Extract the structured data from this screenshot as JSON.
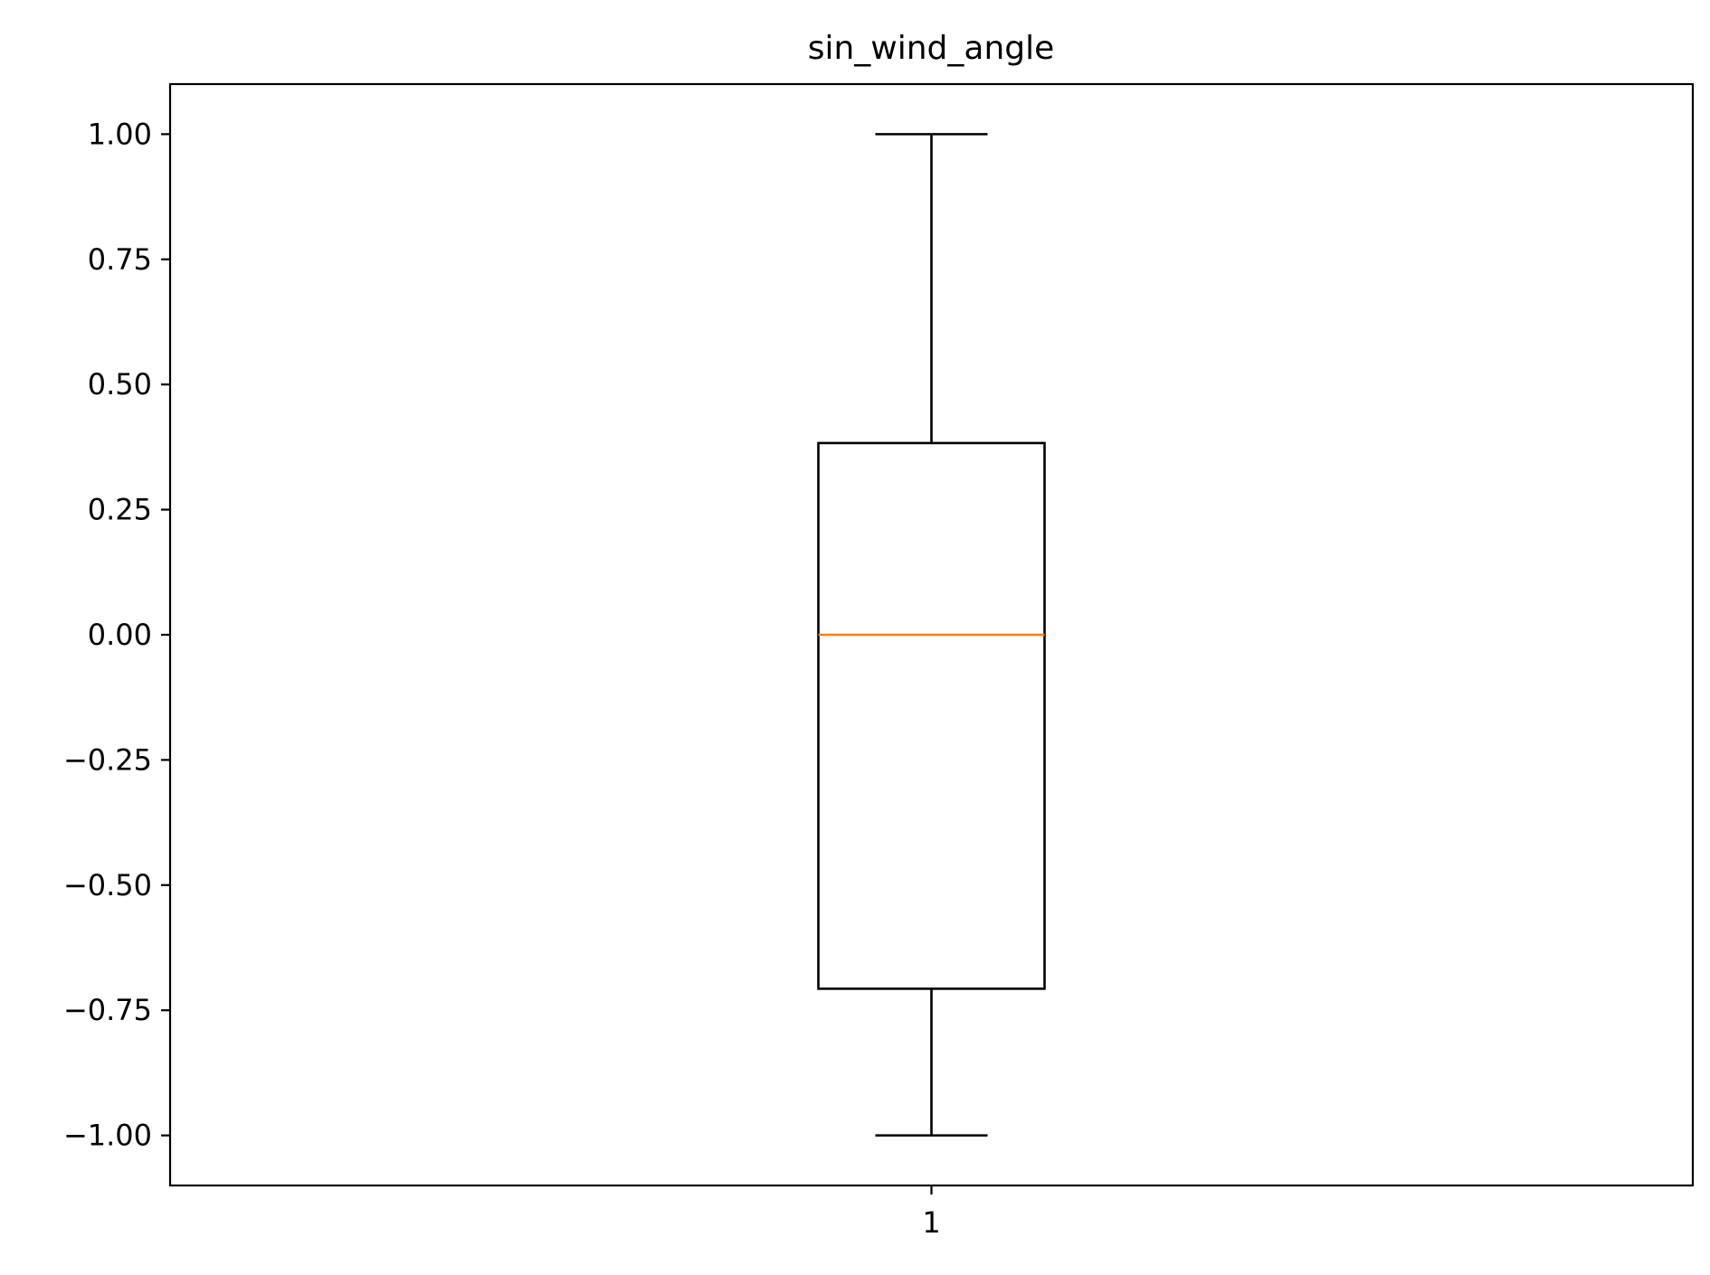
{
  "chart_data": {
    "type": "box",
    "title": "sin_wind_angle",
    "xlabel": "",
    "ylabel": "",
    "categories": [
      "1"
    ],
    "boxes": [
      {
        "category": "1",
        "whisker_low": -1.0,
        "q1": -0.707,
        "median": 0.0,
        "q3": 0.383,
        "whisker_high": 1.0
      }
    ],
    "ylim": [
      -1.1,
      1.1
    ],
    "yticks": [
      1.0,
      0.75,
      0.5,
      0.25,
      0.0,
      -0.25,
      -0.5,
      -0.75,
      -1.0
    ],
    "ytick_labels": [
      "1.00",
      "0.75",
      "0.50",
      "0.25",
      "0.00",
      "−0.25",
      "−0.50",
      "−0.75",
      "−1.00"
    ],
    "grid": false,
    "legend": "none",
    "colors": {
      "box": "#000000",
      "median": "#ff7f0e",
      "whisker": "#000000"
    }
  }
}
